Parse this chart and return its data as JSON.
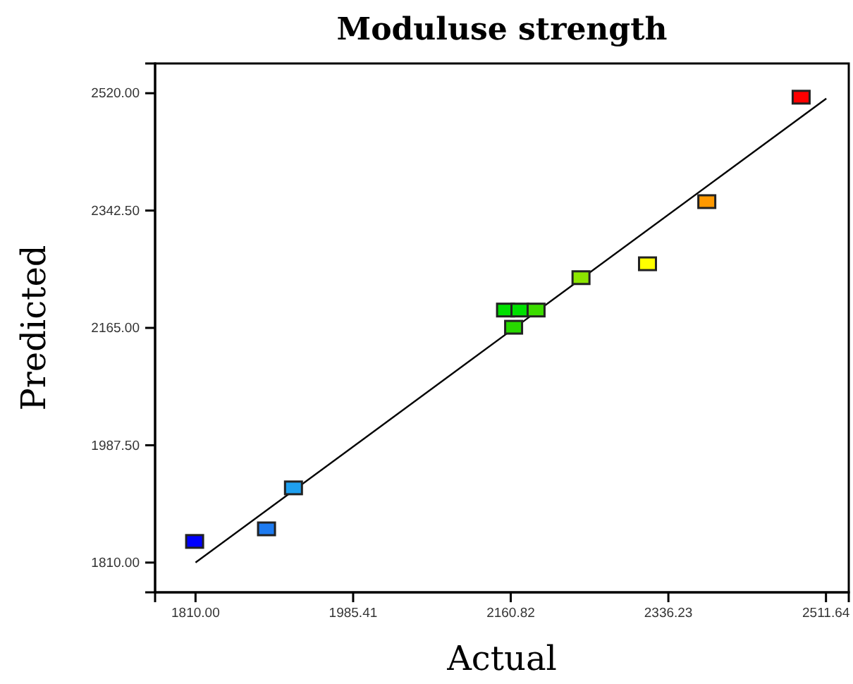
{
  "chart_data": {
    "type": "scatter",
    "title": "Moduluse strength",
    "xlabel": "Actual",
    "ylabel": "Predicted",
    "xlim": [
      1765,
      2537
    ],
    "ylim": [
      1765,
      2565
    ],
    "xticks": [
      {
        "value": 1810,
        "label": "1810.00"
      },
      {
        "value": 1985.41,
        "label": "1985.41"
      },
      {
        "value": 2160.82,
        "label": "2160.82"
      },
      {
        "value": 2336.23,
        "label": "2336.23"
      },
      {
        "value": 2511.64,
        "label": "2511.64"
      }
    ],
    "yticks": [
      {
        "value": 1810,
        "label": "1810.00"
      },
      {
        "value": 1987.5,
        "label": "1987.50"
      },
      {
        "value": 2165,
        "label": "2165.00"
      },
      {
        "value": 2342.5,
        "label": "2342.50"
      },
      {
        "value": 2520,
        "label": "2520.00"
      }
    ],
    "grid": false,
    "marker": "square",
    "series": [
      {
        "x": [
          1809,
          1889,
          1919,
          2155,
          2171,
          2164,
          2189,
          2239,
          2313,
          2379,
          2484
        ],
        "values": [
          1842,
          1861,
          1923,
          2192,
          2192,
          2166,
          2192,
          2241,
          2262,
          2356,
          2514
        ],
        "colors": [
          "#0000ff",
          "#1e7bf0",
          "#1ea0f0",
          "#00e000",
          "#00e000",
          "#28d800",
          "#3cdc00",
          "#8ce600",
          "#ffff00",
          "#ff9900",
          "#ff0000"
        ]
      },
      {
        "type": "line",
        "x": [
          1810,
          2512
        ],
        "values": [
          1810,
          2512
        ],
        "color": "#000000",
        "line_style": "solid",
        "marker": "none"
      }
    ]
  }
}
